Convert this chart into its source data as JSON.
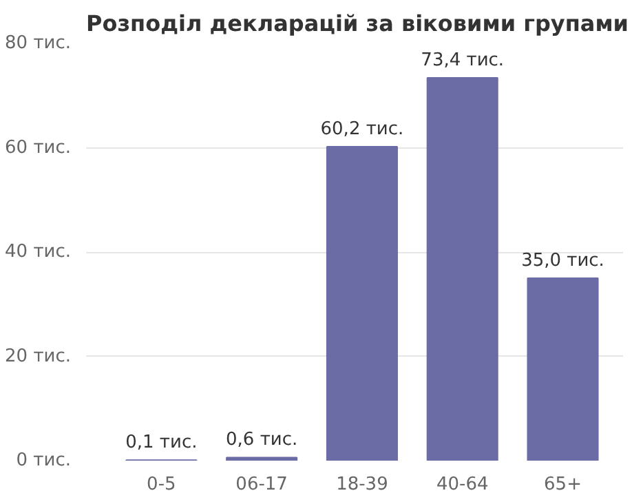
{
  "chart_data": {
    "type": "bar",
    "title": "Розподіл декларацій за віковими групами",
    "categories": [
      "0-5",
      "06-17",
      "18-39",
      "40-64",
      "65+"
    ],
    "values": [
      0.1,
      0.6,
      60.2,
      73.4,
      35.0
    ],
    "value_labels": [
      "0,1 тис.",
      "0,6 тис.",
      "60,2 тис.",
      "73,4 тис.",
      "35,0 тис."
    ],
    "color": "#6b6ba6",
    "ylim": [
      0,
      80
    ],
    "yticks": [
      {
        "value": 0,
        "label": "0 тис."
      },
      {
        "value": 20,
        "label": "20 тис."
      },
      {
        "value": 40,
        "label": "40 тис."
      },
      {
        "value": 60,
        "label": "60 тис."
      },
      {
        "value": 80,
        "label": "80 тис."
      }
    ],
    "grid": "y"
  }
}
